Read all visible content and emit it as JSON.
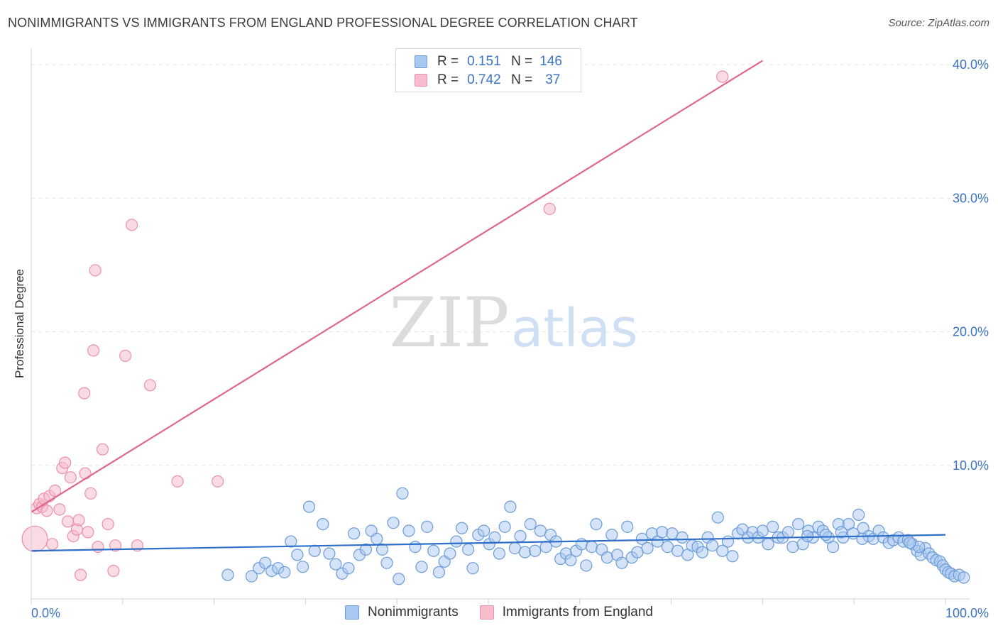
{
  "header": {
    "title": "NONIMMIGRANTS VS IMMIGRANTS FROM ENGLAND PROFESSIONAL DEGREE CORRELATION CHART",
    "source": "Source: ZipAtlas.com"
  },
  "watermark": {
    "zip": "ZIP",
    "atlas": "atlas"
  },
  "legend": {
    "r_label": "R =",
    "n_label": "N =",
    "rows": [
      {
        "r": "0.151",
        "n": "146"
      },
      {
        "r": "0.742",
        "n": "37"
      }
    ]
  },
  "colors": {
    "blue_fill": "#a9c8ef",
    "blue_stroke": "#6b9bd8",
    "blue_line": "#2f6fca",
    "pink_fill": "#f6bccc",
    "pink_stroke": "#eb8faa",
    "pink_line": "#e06591",
    "tick_text": "#3a73c4",
    "grid": "#e4e4e4"
  },
  "chart_data": {
    "type": "scatter",
    "title": "NONIMMIGRANTS VS IMMIGRANTS FROM ENGLAND PROFESSIONAL DEGREE CORRELATION CHART",
    "xlabel": "",
    "ylabel": "Professional Degree",
    "xlim": [
      0,
      100
    ],
    "ylim": [
      0,
      40.8
    ],
    "x_tick_labels": [
      "0.0%",
      "100.0%"
    ],
    "y_ticks": [
      10,
      20,
      30,
      40
    ],
    "y_tick_labels": [
      "10.0%",
      "20.0%",
      "30.0%",
      "40.0%"
    ],
    "legend_position": "top-center",
    "series": [
      {
        "name": "Nonimmigrants",
        "r": 0.151,
        "n": 146,
        "trend": {
          "x": [
            0,
            100
          ],
          "y": [
            3.6,
            4.8
          ]
        },
        "points": [
          [
            21.5,
            1.8
          ],
          [
            24.1,
            1.7
          ],
          [
            24.9,
            2.3
          ],
          [
            25.6,
            2.7
          ],
          [
            26.3,
            2.1
          ],
          [
            27.0,
            2.3
          ],
          [
            27.7,
            2.0
          ],
          [
            28.4,
            4.3
          ],
          [
            29.1,
            3.3
          ],
          [
            29.7,
            2.4
          ],
          [
            30.4,
            6.9
          ],
          [
            31.0,
            3.6
          ],
          [
            31.9,
            5.6
          ],
          [
            32.6,
            3.4
          ],
          [
            33.3,
            2.6
          ],
          [
            34.0,
            1.9
          ],
          [
            34.7,
            2.3
          ],
          [
            35.3,
            4.9
          ],
          [
            35.9,
            3.3
          ],
          [
            36.6,
            3.7
          ],
          [
            37.2,
            5.1
          ],
          [
            37.8,
            4.5
          ],
          [
            38.4,
            3.7
          ],
          [
            38.9,
            2.7
          ],
          [
            39.6,
            5.7
          ],
          [
            40.2,
            1.5
          ],
          [
            40.6,
            7.9
          ],
          [
            41.3,
            5.1
          ],
          [
            42.0,
            3.9
          ],
          [
            42.7,
            2.4
          ],
          [
            43.3,
            5.4
          ],
          [
            44.0,
            3.6
          ],
          [
            44.6,
            2.0
          ],
          [
            45.2,
            2.8
          ],
          [
            45.8,
            3.4
          ],
          [
            46.5,
            4.3
          ],
          [
            47.1,
            5.3
          ],
          [
            47.8,
            3.7
          ],
          [
            48.3,
            2.3
          ],
          [
            48.9,
            4.8
          ],
          [
            49.5,
            5.1
          ],
          [
            50.1,
            4.1
          ],
          [
            50.7,
            4.6
          ],
          [
            51.2,
            3.4
          ],
          [
            51.8,
            5.4
          ],
          [
            52.4,
            6.9
          ],
          [
            52.9,
            3.8
          ],
          [
            53.5,
            4.7
          ],
          [
            54.0,
            3.5
          ],
          [
            54.6,
            5.6
          ],
          [
            55.1,
            3.6
          ],
          [
            55.7,
            5.1
          ],
          [
            56.3,
            3.9
          ],
          [
            56.8,
            4.8
          ],
          [
            57.4,
            4.3
          ],
          [
            57.9,
            3.0
          ],
          [
            58.5,
            3.4
          ],
          [
            59.0,
            2.9
          ],
          [
            59.6,
            3.6
          ],
          [
            60.2,
            4.1
          ],
          [
            60.7,
            2.5
          ],
          [
            61.3,
            3.9
          ],
          [
            61.8,
            5.6
          ],
          [
            62.4,
            3.7
          ],
          [
            63.0,
            3.1
          ],
          [
            63.5,
            4.8
          ],
          [
            64.1,
            3.3
          ],
          [
            64.6,
            2.7
          ],
          [
            65.2,
            5.4
          ],
          [
            65.7,
            3.1
          ],
          [
            66.3,
            3.5
          ],
          [
            66.8,
            4.5
          ],
          [
            67.4,
            3.8
          ],
          [
            67.9,
            4.9
          ],
          [
            68.5,
            4.3
          ],
          [
            69.0,
            5.0
          ],
          [
            69.6,
            3.9
          ],
          [
            70.1,
            4.9
          ],
          [
            70.7,
            3.6
          ],
          [
            71.2,
            4.6
          ],
          [
            71.8,
            3.3
          ],
          [
            72.3,
            4.0
          ],
          [
            72.9,
            3.9
          ],
          [
            73.4,
            3.5
          ],
          [
            74.0,
            4.6
          ],
          [
            74.5,
            4.0
          ],
          [
            75.1,
            6.1
          ],
          [
            75.6,
            3.6
          ],
          [
            76.2,
            4.3
          ],
          [
            76.7,
            3.2
          ],
          [
            77.3,
            4.9
          ],
          [
            77.8,
            5.2
          ],
          [
            78.4,
            4.6
          ],
          [
            78.9,
            5.0
          ],
          [
            79.5,
            4.6
          ],
          [
            80.0,
            5.1
          ],
          [
            80.6,
            4.1
          ],
          [
            81.1,
            5.4
          ],
          [
            81.7,
            4.6
          ],
          [
            82.2,
            4.6
          ],
          [
            82.8,
            5.0
          ],
          [
            83.3,
            3.9
          ],
          [
            83.9,
            5.6
          ],
          [
            84.4,
            4.1
          ],
          [
            85.0,
            5.1
          ],
          [
            85.5,
            4.6
          ],
          [
            86.1,
            5.4
          ],
          [
            86.6,
            5.1
          ],
          [
            87.2,
            4.6
          ],
          [
            87.7,
            3.9
          ],
          [
            88.3,
            5.6
          ],
          [
            88.8,
            4.6
          ],
          [
            89.4,
            5.6
          ],
          [
            89.9,
            4.9
          ],
          [
            90.5,
            6.3
          ],
          [
            91.0,
            5.3
          ],
          [
            91.6,
            4.7
          ],
          [
            92.1,
            4.5
          ],
          [
            92.7,
            5.1
          ],
          [
            93.2,
            4.6
          ],
          [
            93.8,
            4.2
          ],
          [
            94.3,
            4.4
          ],
          [
            94.9,
            4.6
          ],
          [
            95.4,
            4.3
          ],
          [
            95.9,
            4.4
          ],
          [
            96.4,
            4.1
          ],
          [
            96.9,
            3.6
          ],
          [
            97.3,
            3.3
          ],
          [
            97.8,
            3.8
          ],
          [
            98.2,
            3.4
          ],
          [
            98.6,
            3.1
          ],
          [
            99.0,
            2.9
          ],
          [
            99.4,
            2.8
          ],
          [
            99.7,
            2.5
          ],
          [
            100.0,
            2.2
          ],
          [
            100.3,
            2.0
          ],
          [
            100.6,
            1.9
          ],
          [
            101.0,
            1.7
          ],
          [
            101.5,
            1.8
          ],
          [
            102.0,
            1.6
          ],
          [
            97.1,
            3.9
          ],
          [
            96.1,
            4.2
          ],
          [
            90.9,
            4.5
          ],
          [
            88.6,
            5.0
          ],
          [
            86.9,
            4.8
          ],
          [
            84.9,
            4.7
          ]
        ]
      },
      {
        "name": "Immigrants from England",
        "r": 0.742,
        "n": 37,
        "trend": {
          "x": [
            0,
            80
          ],
          "y": [
            6.5,
            40.3
          ]
        },
        "points": [
          [
            0.4,
            4.5
          ],
          [
            0.6,
            6.8
          ],
          [
            0.9,
            7.1
          ],
          [
            1.2,
            6.9
          ],
          [
            1.4,
            7.5
          ],
          [
            1.7,
            6.6
          ],
          [
            2.0,
            7.7
          ],
          [
            2.3,
            4.1
          ],
          [
            2.6,
            8.1
          ],
          [
            3.1,
            6.7
          ],
          [
            3.4,
            9.8
          ],
          [
            3.7,
            10.2
          ],
          [
            4.0,
            5.8
          ],
          [
            4.3,
            9.1
          ],
          [
            4.6,
            4.7
          ],
          [
            5.0,
            5.2
          ],
          [
            5.2,
            5.9
          ],
          [
            5.4,
            1.8
          ],
          [
            5.8,
            15.4
          ],
          [
            5.9,
            9.4
          ],
          [
            6.2,
            5.0
          ],
          [
            6.5,
            7.9
          ],
          [
            6.8,
            18.6
          ],
          [
            7.0,
            24.6
          ],
          [
            7.3,
            3.9
          ],
          [
            7.8,
            11.2
          ],
          [
            8.4,
            5.6
          ],
          [
            9.0,
            2.1
          ],
          [
            9.2,
            4.0
          ],
          [
            10.3,
            18.2
          ],
          [
            11.0,
            28.0
          ],
          [
            11.6,
            4.0
          ],
          [
            13.0,
            16.0
          ],
          [
            16.0,
            8.8
          ],
          [
            20.4,
            8.8
          ],
          [
            56.7,
            29.2
          ],
          [
            75.6,
            39.1
          ]
        ]
      }
    ]
  },
  "bottom_legend": {
    "items": [
      "Nonimmigrants",
      "Immigrants from England"
    ]
  }
}
